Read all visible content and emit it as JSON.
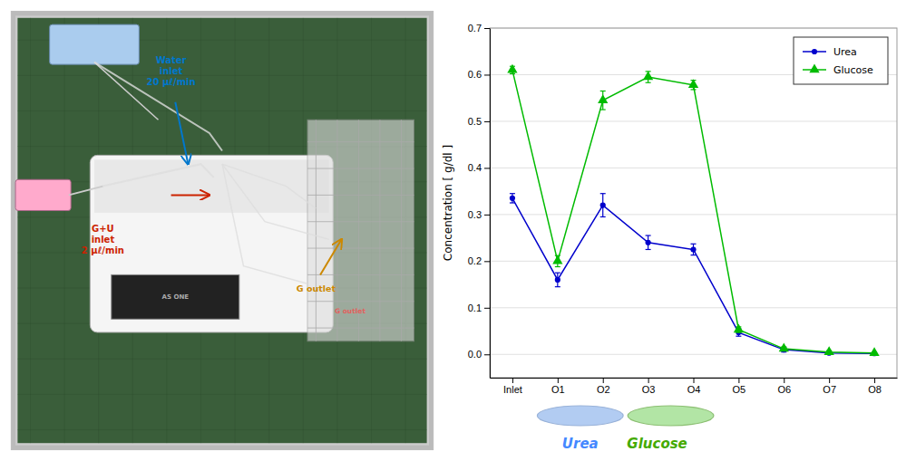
{
  "chart_data": {
    "type": "line",
    "categories": [
      "Inlet",
      "O1",
      "O2",
      "O3",
      "O4",
      "O5",
      "O6",
      "O7",
      "O8"
    ],
    "series": [
      {
        "name": "Urea",
        "color": "#0000CC",
        "marker": "circle",
        "values": [
          0.335,
          0.16,
          0.32,
          0.24,
          0.225,
          0.047,
          0.01,
          0.003,
          0.002
        ],
        "errors": [
          0.01,
          0.015,
          0.025,
          0.015,
          0.012,
          0.008,
          0.005,
          0.003,
          0.002
        ]
      },
      {
        "name": "Glucose",
        "color": "#00BB00",
        "marker": "triangle",
        "values": [
          0.61,
          0.2,
          0.545,
          0.595,
          0.578,
          0.053,
          0.012,
          0.005,
          0.003
        ],
        "errors": [
          0.008,
          0.012,
          0.02,
          0.012,
          0.01,
          0.006,
          0.004,
          0.003,
          0.002
        ]
      }
    ],
    "ylabel": "Concentration [ g/dl ]",
    "ylim": [
      -0.05,
      0.7
    ],
    "yticks": [
      {
        "value": 0.0,
        "label": "0.0"
      },
      0.1,
      0.2,
      0.3,
      0.4,
      0.5,
      0.6,
      0.7
    ],
    "grid": true,
    "legend": "upper right",
    "annotations": [
      {
        "text": "AS ONE",
        "color": "#AAAAAA"
      },
      {
        "text": "Water\ninlet\n20 μℓ/min",
        "color": "#0077CC"
      },
      {
        "text": "G+U\ninlet\n2 μℓ/min",
        "color": "#CC2200"
      },
      {
        "text": "G outlet",
        "color": "#CC8800"
      },
      {
        "text": "G outlet",
        "color": "#FF4444"
      },
      {
        "text": "Urea",
        "color": "#4488FF"
      },
      {
        "text": "Glucose",
        "color": "#44AA00"
      }
    ]
  }
}
